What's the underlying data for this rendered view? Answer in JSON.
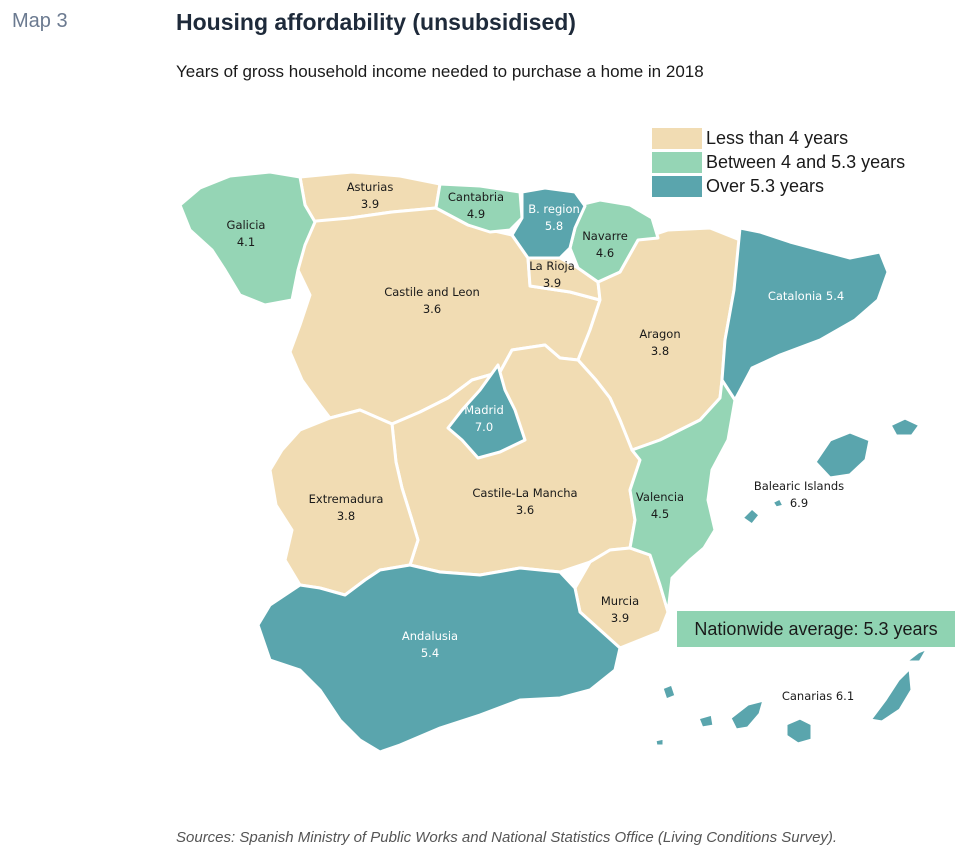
{
  "header": {
    "map_label": "Map 3",
    "title": "Housing affordability (unsubsidised)",
    "subtitle": "Years of gross household income needed to purchase a home in 2018"
  },
  "colors": {
    "low": "#f1dcb3",
    "mid": "#95d5b5",
    "high": "#5aa5ad"
  },
  "legend": [
    {
      "label": "Less than 4 years",
      "color": "#f1dcb3"
    },
    {
      "label": "Between 4 and 5.3 years",
      "color": "#95d5b5"
    },
    {
      "label": "Over 5.3 years",
      "color": "#5aa5ad"
    }
  ],
  "regions": {
    "galicia": {
      "name": "Galicia",
      "value": "4.1"
    },
    "asturias": {
      "name": "Asturias",
      "value": "3.9"
    },
    "cantabria": {
      "name": "Cantabria",
      "value": "4.9"
    },
    "basque": {
      "name": "B. region",
      "value": "5.8"
    },
    "navarre": {
      "name": "Navarre",
      "value": "4.6"
    },
    "rioja": {
      "name": "La Rioja",
      "value": "3.9"
    },
    "castile_leon": {
      "name": "Castile and Leon",
      "value": "3.6"
    },
    "aragon": {
      "name": "Aragon",
      "value": "3.8"
    },
    "catalonia": {
      "name": "Catalonia",
      "value": "5.4",
      "label": "Catalonia 5.4"
    },
    "madrid": {
      "name": "Madrid",
      "value": "7.0"
    },
    "extremadura": {
      "name": "Extremadura",
      "value": "3.8"
    },
    "castile_mancha": {
      "name": "Castile-La Mancha",
      "value": "3.6"
    },
    "valencia": {
      "name": "Valencia",
      "value": "4.5"
    },
    "balearic": {
      "name": "Balearic Islands",
      "value": "6.9"
    },
    "murcia": {
      "name": "Murcia",
      "value": "3.9"
    },
    "andalusia": {
      "name": "Andalusia",
      "value": "5.4"
    },
    "canarias": {
      "name": "Canarias",
      "value": "6.1",
      "label": "Canarias 6.1"
    }
  },
  "average_box": "Nationwide average: 5.3 years",
  "source": "Sources: Spanish Ministry of Public Works and National Statistics Office (Living Conditions Survey)."
}
